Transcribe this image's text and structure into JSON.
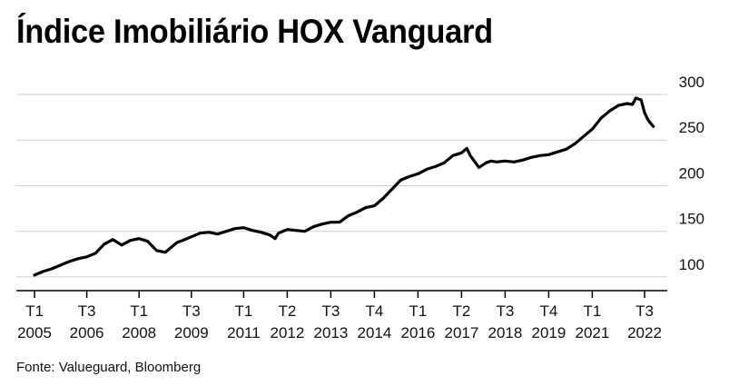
{
  "title": "Índice Imobiliário HOX Vanguard",
  "source": "Fonte: Valueguard, Bloomberg",
  "chart_data": {
    "type": "line",
    "title": "Índice Imobiliário HOX Vanguard",
    "xlabel": "",
    "ylabel": "",
    "ylim": [
      85,
      300
    ],
    "y_ticks": [
      100,
      150,
      200,
      250,
      300
    ],
    "grid": true,
    "y_axis_side": "right",
    "x_ticks": [
      {
        "t": 2005.0,
        "q": "T1",
        "y": "2005"
      },
      {
        "t": 2006.5,
        "q": "T3",
        "y": "2006"
      },
      {
        "t": 2008.0,
        "q": "T1",
        "y": "2008"
      },
      {
        "t": 2009.5,
        "q": "T3",
        "y": "2009"
      },
      {
        "t": 2011.0,
        "q": "T1",
        "y": "2011"
      },
      {
        "t": 2012.25,
        "q": "T2",
        "y": "2012"
      },
      {
        "t": 2013.5,
        "q": "T3",
        "y": "2013"
      },
      {
        "t": 2014.75,
        "q": "T4",
        "y": "2014"
      },
      {
        "t": 2016.0,
        "q": "T1",
        "y": "2016"
      },
      {
        "t": 2017.25,
        "q": "T2",
        "y": "2017"
      },
      {
        "t": 2018.5,
        "q": "T3",
        "y": "2018"
      },
      {
        "t": 2019.75,
        "q": "T4",
        "y": "2019"
      },
      {
        "t": 2021.0,
        "q": "T1",
        "y": "2021"
      },
      {
        "t": 2022.5,
        "q": "T3",
        "y": "2022"
      }
    ],
    "series": [
      {
        "color": "#000000",
        "x": [
          2005.0,
          2005.25,
          2005.5,
          2005.75,
          2006.0,
          2006.25,
          2006.5,
          2006.75,
          2007.0,
          2007.25,
          2007.5,
          2007.75,
          2008.0,
          2008.25,
          2008.4,
          2008.5,
          2008.75,
          2009.0,
          2009.1,
          2009.25,
          2009.5,
          2009.75,
          2010.0,
          2010.25,
          2010.5,
          2010.75,
          2011.0,
          2011.25,
          2011.5,
          2011.75,
          2011.9,
          2012.0,
          2012.25,
          2012.5,
          2012.75,
          2013.0,
          2013.25,
          2013.5,
          2013.75,
          2014.0,
          2014.25,
          2014.5,
          2014.75,
          2015.0,
          2015.25,
          2015.5,
          2015.75,
          2016.0,
          2016.25,
          2016.5,
          2016.75,
          2017.0,
          2017.25,
          2017.4,
          2017.5,
          2017.75,
          2017.95,
          2018.1,
          2018.25,
          2018.5,
          2018.75,
          2019.0,
          2019.25,
          2019.5,
          2019.75,
          2020.0,
          2020.25,
          2020.5,
          2020.75,
          2021.0,
          2021.25,
          2021.5,
          2021.75,
          2022.0,
          2022.15,
          2022.25,
          2022.4,
          2022.5,
          2022.6,
          2022.75
        ],
        "values": [
          102,
          106,
          109,
          113,
          117,
          120,
          122,
          126,
          136,
          141,
          135,
          140,
          142,
          139,
          133,
          129,
          127,
          135,
          138,
          140,
          144,
          148,
          149,
          147,
          150,
          153,
          154,
          151,
          149,
          146,
          142,
          148,
          152,
          151,
          150,
          155,
          158,
          160,
          160,
          167,
          171,
          176,
          178,
          186,
          196,
          206,
          210,
          213,
          218,
          221,
          225,
          233,
          236,
          241,
          233,
          220,
          225,
          227,
          226,
          227,
          226,
          228,
          231,
          233,
          234,
          237,
          240,
          246,
          254,
          262,
          274,
          282,
          288,
          290,
          289,
          296,
          294,
          280,
          272,
          265
        ]
      }
    ]
  }
}
